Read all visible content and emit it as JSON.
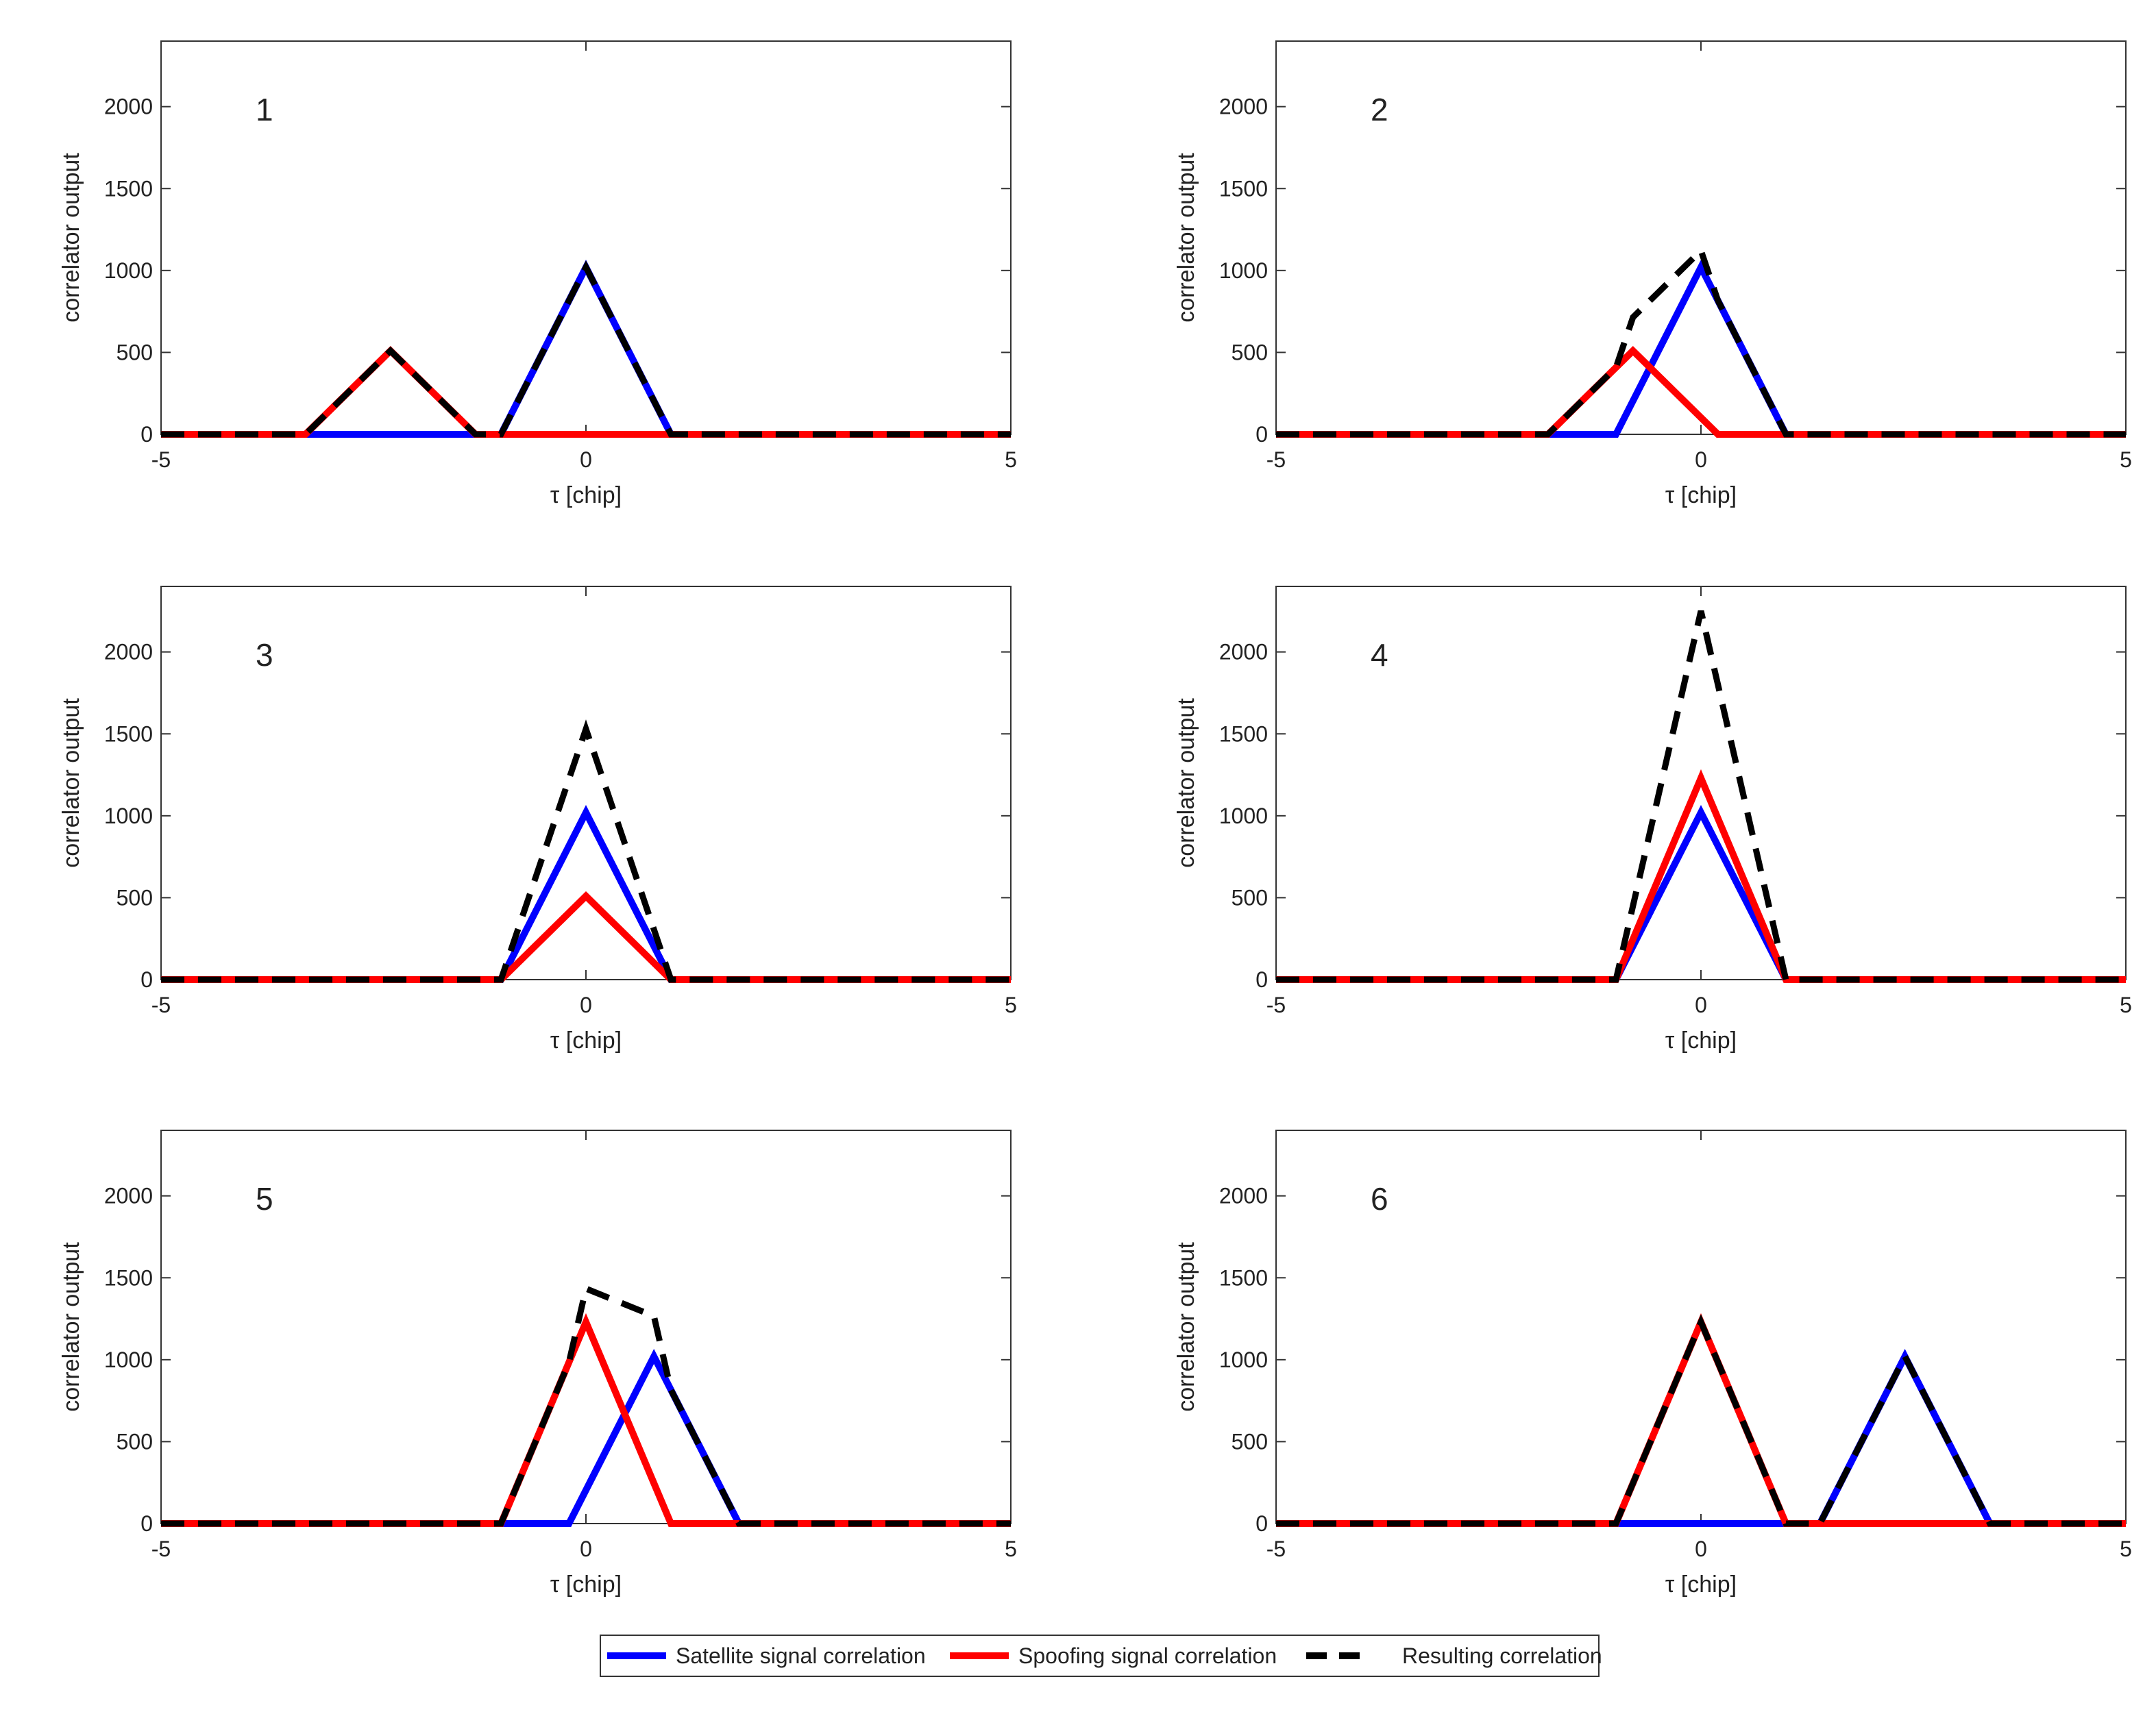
{
  "chart_data": [
    {
      "type": "line",
      "panel_label": "1",
      "xlabel": "τ [chip]",
      "ylabel": "correlator output",
      "xlim": [
        -5,
        5
      ],
      "ylim": [
        0,
        2400
      ],
      "xticks": [
        "-5",
        "0",
        "5"
      ],
      "yticks": [
        "0",
        "500",
        "1000",
        "1500",
        "2000"
      ],
      "series": [
        {
          "name": "Satellite signal correlation",
          "color": "#0000ff",
          "style": "solid",
          "x": [
            -5,
            -1,
            0,
            1,
            5
          ],
          "y": [
            0,
            0,
            1020,
            0,
            0
          ]
        },
        {
          "name": "Spoofing signal correlation",
          "color": "#ff0000",
          "style": "solid",
          "x": [
            -5,
            -3.3,
            -2.3,
            -1.3,
            5
          ],
          "y": [
            0,
            0,
            510,
            0,
            0
          ]
        },
        {
          "name": "Resulting correlation",
          "color": "#000000",
          "style": "dashed",
          "x": [
            -5,
            -3.3,
            -2.3,
            -1.3,
            -1,
            0,
            1,
            5
          ],
          "y": [
            0,
            0,
            510,
            0,
            0,
            1020,
            0,
            0
          ]
        }
      ]
    },
    {
      "type": "line",
      "panel_label": "2",
      "xlabel": "τ [chip]",
      "ylabel": "correlator output",
      "xlim": [
        -5,
        5
      ],
      "ylim": [
        0,
        2400
      ],
      "xticks": [
        "-5",
        "0",
        "5"
      ],
      "yticks": [
        "0",
        "500",
        "1000",
        "1500",
        "2000"
      ],
      "series": [
        {
          "name": "Satellite signal correlation",
          "color": "#0000ff",
          "style": "solid",
          "x": [
            -5,
            -1,
            0,
            1,
            5
          ],
          "y": [
            0,
            0,
            1020,
            0,
            0
          ]
        },
        {
          "name": "Spoofing signal correlation",
          "color": "#ff0000",
          "style": "solid",
          "x": [
            -5,
            -1.8,
            -0.8,
            0.2,
            5
          ],
          "y": [
            0,
            0,
            510,
            0,
            0
          ]
        },
        {
          "name": "Resulting correlation",
          "color": "#000000",
          "style": "dashed",
          "x": [
            -5,
            -1.8,
            -1,
            -0.8,
            0,
            0.2,
            1,
            5
          ],
          "y": [
            0,
            0,
            408,
            714,
            1122,
            816,
            0,
            0
          ]
        }
      ]
    },
    {
      "type": "line",
      "panel_label": "3",
      "xlabel": "τ [chip]",
      "ylabel": "correlator output",
      "xlim": [
        -5,
        5
      ],
      "ylim": [
        0,
        2400
      ],
      "xticks": [
        "-5",
        "0",
        "5"
      ],
      "yticks": [
        "0",
        "500",
        "1000",
        "1500",
        "2000"
      ],
      "series": [
        {
          "name": "Satellite signal correlation",
          "color": "#0000ff",
          "style": "solid",
          "x": [
            -5,
            -1,
            0,
            1,
            5
          ],
          "y": [
            0,
            0,
            1020,
            0,
            0
          ]
        },
        {
          "name": "Spoofing signal correlation",
          "color": "#ff0000",
          "style": "solid",
          "x": [
            -5,
            -1,
            0,
            1,
            5
          ],
          "y": [
            0,
            0,
            510,
            0,
            0
          ]
        },
        {
          "name": "Resulting correlation",
          "color": "#000000",
          "style": "dashed",
          "x": [
            -5,
            -1,
            0,
            1,
            5
          ],
          "y": [
            0,
            0,
            1530,
            0,
            0
          ]
        }
      ]
    },
    {
      "type": "line",
      "panel_label": "4",
      "xlabel": "τ [chip]",
      "ylabel": "correlator output",
      "xlim": [
        -5,
        5
      ],
      "ylim": [
        0,
        2400
      ],
      "xticks": [
        "-5",
        "0",
        "5"
      ],
      "yticks": [
        "0",
        "500",
        "1000",
        "1500",
        "2000"
      ],
      "series": [
        {
          "name": "Satellite signal correlation",
          "color": "#0000ff",
          "style": "solid",
          "x": [
            -5,
            -1,
            0,
            1,
            5
          ],
          "y": [
            0,
            0,
            1020,
            0,
            0
          ]
        },
        {
          "name": "Spoofing signal correlation",
          "color": "#ff0000",
          "style": "solid",
          "x": [
            -5,
            -1,
            0,
            1,
            5
          ],
          "y": [
            0,
            0,
            1230,
            0,
            0
          ]
        },
        {
          "name": "Resulting correlation",
          "color": "#000000",
          "style": "dashed",
          "x": [
            -5,
            -1,
            0,
            1,
            5
          ],
          "y": [
            0,
            0,
            2250,
            0,
            0
          ]
        }
      ]
    },
    {
      "type": "line",
      "panel_label": "5",
      "xlabel": "τ [chip]",
      "ylabel": "correlator output",
      "xlim": [
        -5,
        5
      ],
      "ylim": [
        0,
        2400
      ],
      "xticks": [
        "-5",
        "0",
        "5"
      ],
      "yticks": [
        "0",
        "500",
        "1000",
        "1500",
        "2000"
      ],
      "series": [
        {
          "name": "Satellite signal correlation",
          "color": "#0000ff",
          "style": "solid",
          "x": [
            -5,
            -0.2,
            0.8,
            1.8,
            5
          ],
          "y": [
            0,
            0,
            1020,
            0,
            0
          ]
        },
        {
          "name": "Spoofing signal correlation",
          "color": "#ff0000",
          "style": "solid",
          "x": [
            -5,
            -1,
            0,
            1,
            5
          ],
          "y": [
            0,
            0,
            1230,
            0,
            0
          ]
        },
        {
          "name": "Resulting correlation",
          "color": "#000000",
          "style": "dashed",
          "x": [
            -5,
            -1,
            -0.2,
            0,
            0.8,
            1,
            1.8,
            5
          ],
          "y": [
            0,
            0,
            984,
            1434,
            1266,
            816,
            0,
            0
          ]
        }
      ]
    },
    {
      "type": "line",
      "panel_label": "6",
      "xlabel": "τ [chip]",
      "ylabel": "correlator output",
      "xlim": [
        -5,
        5
      ],
      "ylim": [
        0,
        2400
      ],
      "xticks": [
        "-5",
        "0",
        "5"
      ],
      "yticks": [
        "0",
        "500",
        "1000",
        "1500",
        "2000"
      ],
      "series": [
        {
          "name": "Satellite signal correlation",
          "color": "#0000ff",
          "style": "solid",
          "x": [
            -5,
            1.4,
            2.4,
            3.4,
            5
          ],
          "y": [
            0,
            0,
            1020,
            0,
            0
          ]
        },
        {
          "name": "Spoofing signal correlation",
          "color": "#ff0000",
          "style": "solid",
          "x": [
            -5,
            -1,
            0,
            1,
            5
          ],
          "y": [
            0,
            0,
            1230,
            0,
            0
          ]
        },
        {
          "name": "Resulting correlation",
          "color": "#000000",
          "style": "dashed",
          "x": [
            -5,
            -1,
            0,
            1,
            1.4,
            2.4,
            3.4,
            5
          ],
          "y": [
            0,
            0,
            1230,
            0,
            0,
            1020,
            0,
            0
          ]
        }
      ]
    }
  ],
  "legend": {
    "items": [
      {
        "label": "Satellite signal correlation",
        "color": "#0000ff",
        "style": "solid"
      },
      {
        "label": "Spoofing signal correlation",
        "color": "#ff0000",
        "style": "solid"
      },
      {
        "label": "Resulting correlation",
        "color": "#000000",
        "style": "dashed"
      }
    ]
  }
}
